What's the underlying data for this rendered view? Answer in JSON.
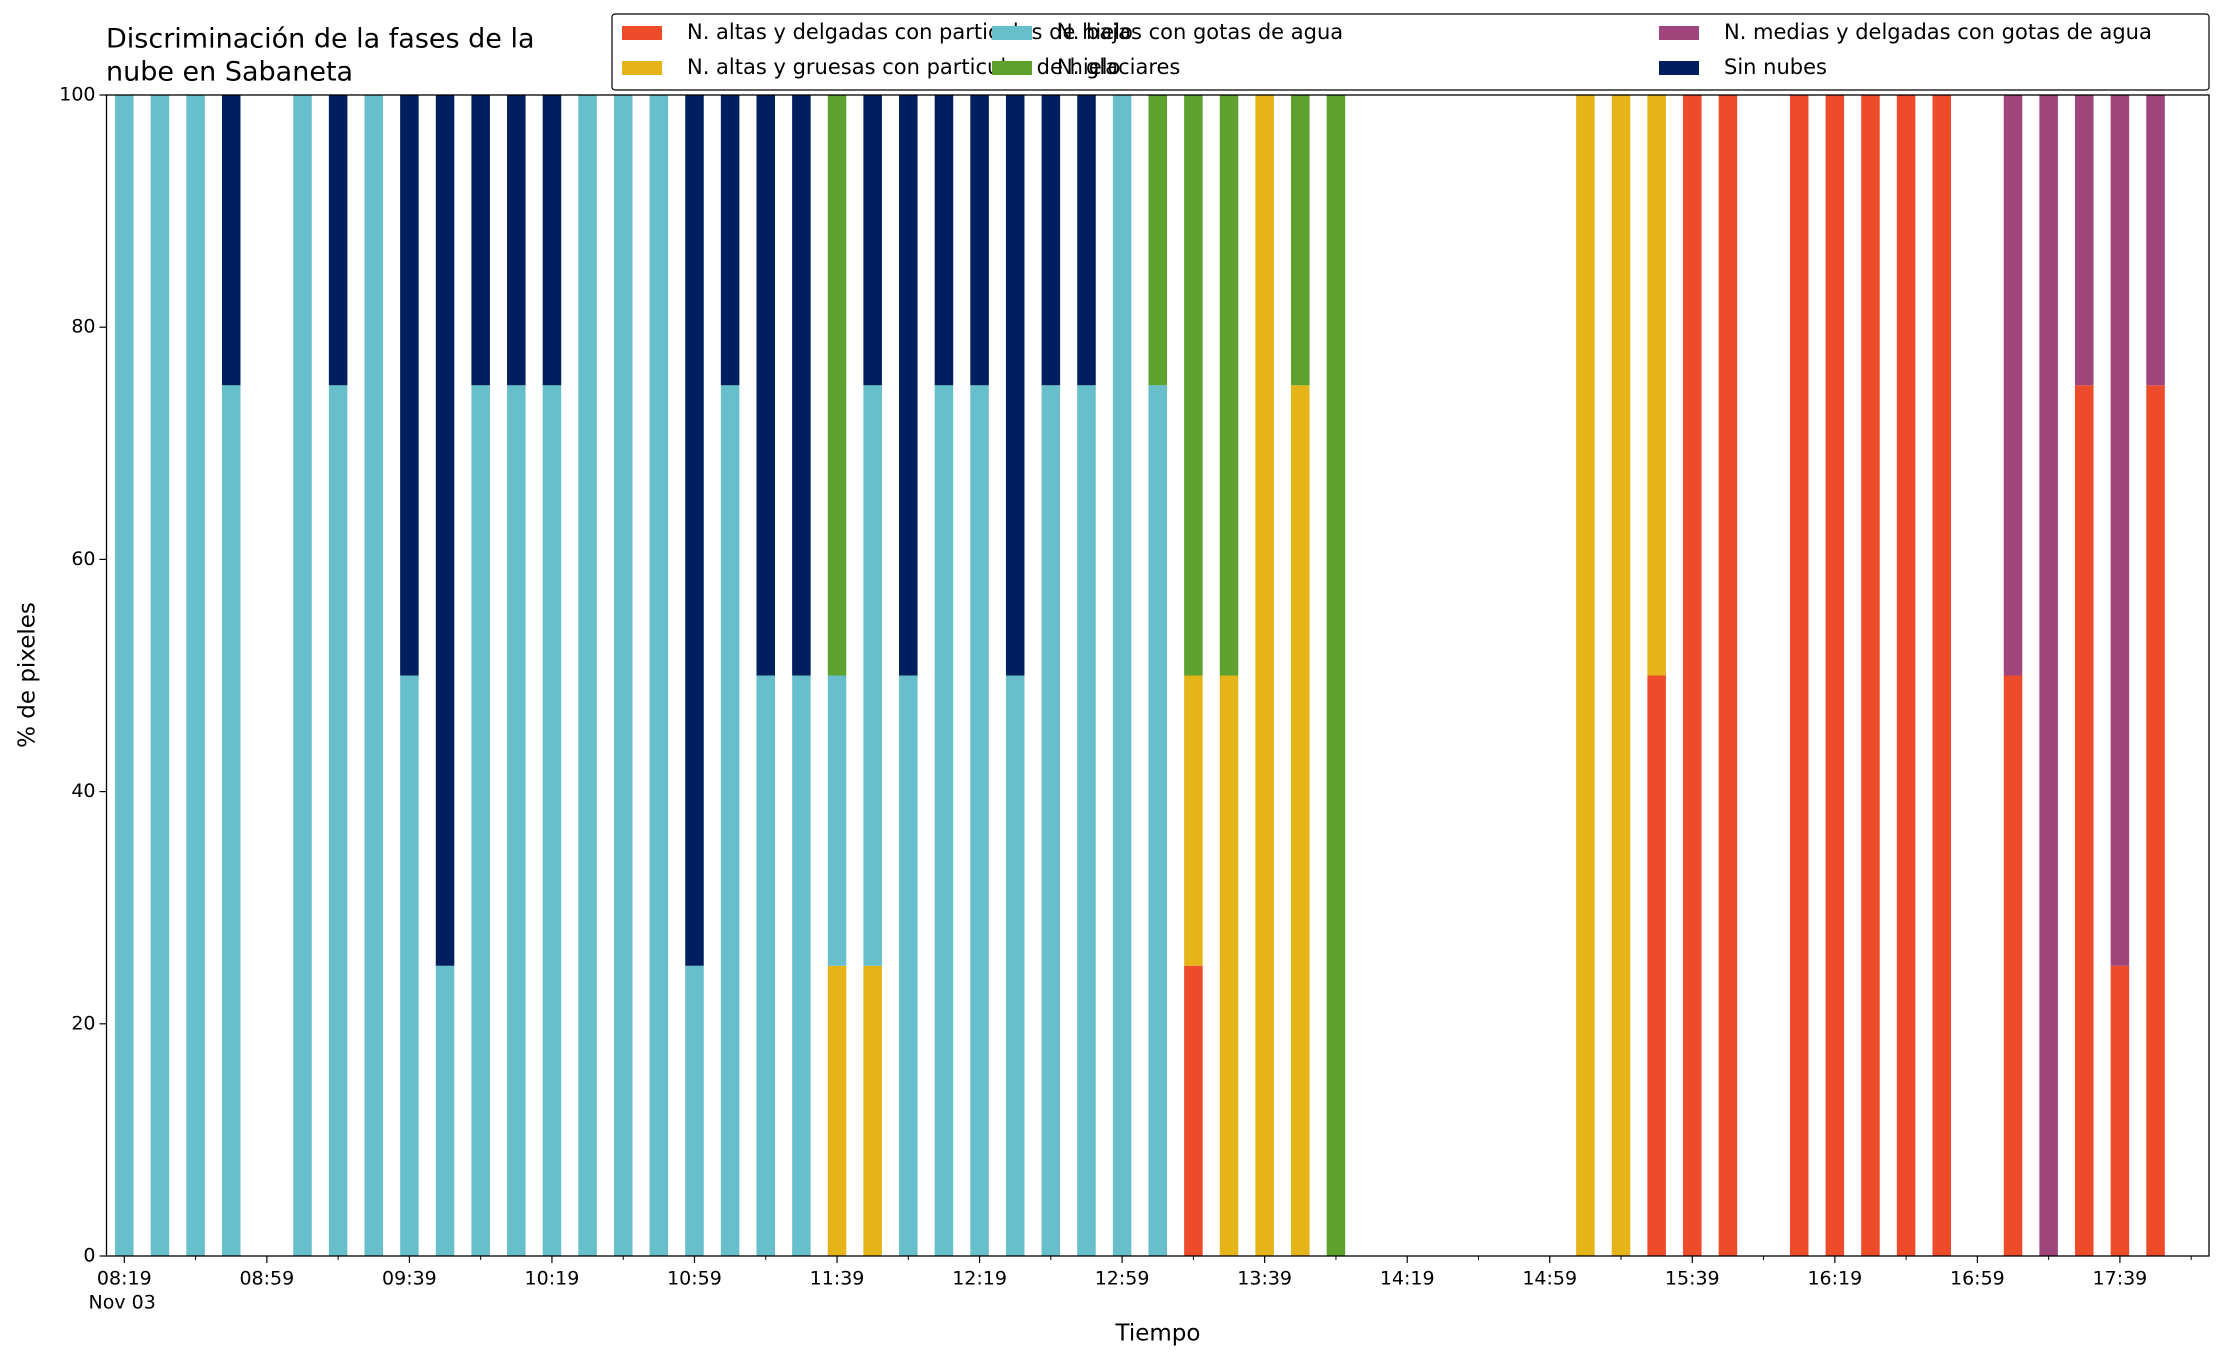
{
  "chart_data": {
    "type": "stacked_bar",
    "title": [
      "Discriminación de la fases de la",
      "nube en Sabaneta"
    ],
    "x_label": "Tiempo",
    "y_label": "% de pixeles",
    "date_label": "Nov 03",
    "categories": [
      "08:19",
      null,
      null,
      null,
      "08:59",
      null,
      null,
      null,
      "09:39",
      null,
      null,
      null,
      "10:19",
      null,
      null,
      null,
      "10:59",
      null,
      null,
      null,
      "11:39",
      null,
      null,
      null,
      "12:19",
      null,
      null,
      null,
      "12:59",
      null,
      null,
      null,
      "13:39",
      null,
      null,
      null,
      "14:19",
      null,
      null,
      null,
      "14:59",
      null,
      null,
      null,
      "15:39",
      null,
      null,
      null,
      "16:19",
      null,
      null,
      null,
      "16:59",
      null,
      null,
      null,
      "17:39",
      null,
      null
    ],
    "series": [
      {
        "name": "N. altas y delgadas con particulas de hielo",
        "color": "#ee4b2b",
        "values": [
          0,
          0,
          0,
          0,
          null,
          0,
          0,
          0,
          0,
          0,
          0,
          0,
          0,
          0,
          0,
          0,
          0,
          0,
          0,
          0,
          0,
          0,
          0,
          0,
          0,
          0,
          0,
          0,
          0,
          0,
          25,
          0,
          0,
          0,
          0,
          null,
          null,
          null,
          null,
          null,
          null,
          0,
          0,
          50,
          100,
          100,
          null,
          100,
          100,
          100,
          100,
          100,
          null,
          50,
          0,
          75,
          25,
          75,
          null
        ]
      },
      {
        "name": "N. altas y gruesas con particulas de hielo",
        "color": "#e4b418",
        "values": [
          0,
          0,
          0,
          0,
          null,
          0,
          0,
          0,
          0,
          0,
          0,
          0,
          0,
          0,
          0,
          0,
          0,
          0,
          0,
          0,
          25,
          25,
          0,
          0,
          0,
          0,
          0,
          0,
          0,
          0,
          25,
          50,
          100,
          75,
          0,
          null,
          null,
          null,
          null,
          null,
          null,
          100,
          100,
          50,
          0,
          0,
          null,
          0,
          0,
          0,
          0,
          0,
          null,
          0,
          0,
          0,
          0,
          0,
          null
        ]
      },
      {
        "name": "N. bajas con gotas de agua",
        "color": "#67bfcb",
        "values": [
          100,
          100,
          100,
          75,
          null,
          100,
          75,
          100,
          50,
          25,
          75,
          75,
          75,
          100,
          100,
          100,
          25,
          75,
          50,
          50,
          25,
          50,
          50,
          75,
          75,
          50,
          75,
          75,
          100,
          75,
          0,
          0,
          0,
          0,
          0,
          null,
          null,
          null,
          null,
          null,
          null,
          0,
          0,
          0,
          0,
          0,
          null,
          0,
          0,
          0,
          0,
          0,
          null,
          0,
          0,
          0,
          0,
          0,
          null
        ]
      },
      {
        "name": "N. glaciares",
        "color": "#5da22e",
        "values": [
          0,
          0,
          0,
          0,
          null,
          0,
          0,
          0,
          0,
          0,
          0,
          0,
          0,
          0,
          0,
          0,
          0,
          0,
          0,
          0,
          50,
          0,
          0,
          0,
          0,
          0,
          0,
          0,
          0,
          25,
          50,
          50,
          0,
          25,
          100,
          null,
          null,
          null,
          null,
          null,
          null,
          0,
          0,
          0,
          0,
          0,
          null,
          0,
          0,
          0,
          0,
          0,
          null,
          0,
          0,
          0,
          0,
          0,
          null
        ]
      },
      {
        "name": "N. medias y delgadas con gotas de agua",
        "color": "#a0457c",
        "values": [
          0,
          0,
          0,
          0,
          null,
          0,
          0,
          0,
          0,
          0,
          0,
          0,
          0,
          0,
          0,
          0,
          0,
          0,
          0,
          0,
          0,
          0,
          0,
          0,
          0,
          0,
          0,
          0,
          0,
          0,
          0,
          0,
          0,
          0,
          0,
          null,
          null,
          null,
          null,
          null,
          null,
          0,
          0,
          0,
          0,
          0,
          null,
          0,
          0,
          0,
          0,
          0,
          null,
          50,
          100,
          25,
          75,
          25,
          null
        ]
      },
      {
        "name": "Sin nubes",
        "color": "#001f5e",
        "values": [
          0,
          0,
          0,
          25,
          null,
          0,
          25,
          0,
          50,
          75,
          25,
          25,
          25,
          0,
          0,
          0,
          75,
          25,
          50,
          50,
          0,
          25,
          50,
          25,
          25,
          50,
          25,
          25,
          0,
          0,
          0,
          0,
          0,
          0,
          0,
          null,
          null,
          null,
          null,
          null,
          null,
          0,
          0,
          0,
          0,
          0,
          null,
          0,
          0,
          0,
          0,
          0,
          null,
          0,
          0,
          0,
          0,
          0,
          null
        ]
      }
    ],
    "ylim": [
      0,
      100
    ],
    "yticks": [
      0,
      20,
      40,
      60,
      80,
      100
    ],
    "legend": "top-right"
  }
}
